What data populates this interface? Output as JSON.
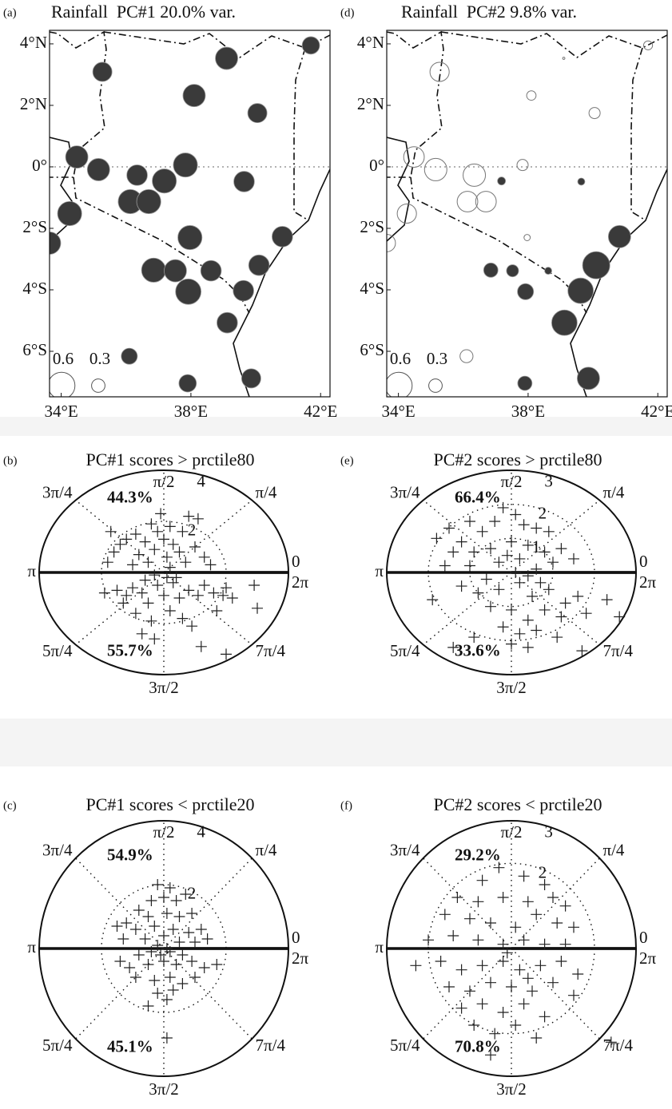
{
  "chart_data": [
    {
      "type": "bubble-map",
      "panel": "(a)",
      "title": "Rainfall  PC#1 20.0% var.",
      "x": [
        35.27,
        39.1,
        38.1,
        40.05,
        41.7,
        34.48,
        35.15,
        36.34,
        37.83,
        37.18,
        36.13,
        36.7,
        39.64,
        34.26,
        33.64,
        37.97,
        40.82,
        36.85,
        37.52,
        38.62,
        40.1,
        37.92,
        39.62,
        39.12,
        36.1,
        39.86,
        37.9
      ],
      "y": [
        3.09,
        3.53,
        2.32,
        1.75,
        3.95,
        0.32,
        -0.09,
        -0.27,
        0.06,
        -0.46,
        -1.13,
        -1.13,
        -0.48,
        -1.52,
        -2.48,
        -2.3,
        -2.27,
        -3.36,
        -3.38,
        -3.38,
        -3.2,
        -4.06,
        -4.03,
        -5.07,
        -6.16,
        -6.88,
        -7.04
      ],
      "values": [
        0.43,
        0.5,
        0.5,
        0.43,
        0.39,
        0.5,
        0.5,
        0.46,
        0.54,
        0.54,
        0.54,
        0.54,
        0.46,
        0.54,
        0.5,
        0.54,
        0.46,
        0.54,
        0.5,
        0.46,
        0.46,
        0.57,
        0.46,
        0.46,
        0.36,
        0.43,
        0.39
      ],
      "xlim": [
        33.64,
        42.29
      ],
      "ylim": [
        -7.48,
        4.44
      ],
      "xticks": [
        {
          "value": 34,
          "label": "34°E"
        },
        {
          "value": 38,
          "label": "38°E"
        },
        {
          "value": 42,
          "label": "42°E"
        }
      ],
      "yticks": [
        {
          "value": 4,
          "label": "4°N"
        },
        {
          "value": 2,
          "label": "2°N"
        },
        {
          "value": 0,
          "label": "0°"
        },
        {
          "value": -2,
          "label": "2°S"
        },
        {
          "value": -4,
          "label": "4°S"
        },
        {
          "value": -6,
          "label": "6°S"
        }
      ],
      "size_legend": [
        0.6,
        0.3
      ],
      "color": "#3a3a3a"
    },
    {
      "type": "polar-scatter",
      "panel": "(b)",
      "title": "PC#1 scores > prctile80",
      "x": [
        -1.7,
        -1.4,
        -1.6,
        -1.2,
        -0.9,
        -0.6,
        -0.4,
        -0.2,
        0,
        0.2,
        0.3,
        0.6,
        0.8,
        0.5,
        -0.8,
        -0.3,
        0.1,
        1.0,
        1.3,
        0.7,
        -1.0,
        -0.5,
        0.2,
        1.5,
        -1.8,
        1.1,
        -0.1,
        -1.9,
        -1.5,
        -1.2,
        -1.0,
        -0.7,
        -0.5,
        -0.2,
        0,
        0.3,
        0.5,
        0.8,
        1.1,
        1.3,
        1.6,
        1.9,
        2.0,
        2.9,
        3.0,
        2.2,
        -0.9,
        -0.4,
        -0.7,
        -0.3,
        0.2,
        0.6,
        0.9,
        1.2,
        2.0,
        -1.3,
        0.1,
        -0.3,
        0.4,
        -0.6,
        1.7
      ],
      "y": [
        1.6,
        1.1,
        0.8,
        1.3,
        1.5,
        1.2,
        1.9,
        1.6,
        1.3,
        1.8,
        1.1,
        1.6,
        2.2,
        0.8,
        0.7,
        0.9,
        0.6,
        1.0,
        0.6,
        0.4,
        0.3,
        0.4,
        0.2,
        0.3,
        0.4,
        2.1,
        2.3,
        -0.8,
        -0.7,
        -0.9,
        -0.6,
        -0.8,
        -1.2,
        -0.5,
        -0.9,
        -0.4,
        -1.0,
        -0.7,
        -0.9,
        -0.5,
        -0.8,
        -0.9,
        -0.6,
        -0.5,
        -1.4,
        -1.0,
        -1.6,
        -1.9,
        -2.4,
        -2.6,
        -1.5,
        -1.8,
        -2.1,
        -2.9,
        -3.2,
        -1.2,
        -0.2,
        -0.1,
        -0.2,
        -0.3,
        -1.5
      ],
      "rlim": [
        0,
        4
      ],
      "rticks": [
        2,
        4
      ],
      "thetaticks": [
        {
          "value": 0,
          "label": "0"
        },
        {
          "value": 0.7854,
          "label": "π/4"
        },
        {
          "value": 1.5708,
          "label": "π/2"
        },
        {
          "value": 2.3562,
          "label": "3π/4"
        },
        {
          "value": 3.1416,
          "label": "π"
        },
        {
          "value": 3.927,
          "label": "5π/4"
        },
        {
          "value": 4.7124,
          "label": "3π/2"
        },
        {
          "value": 5.4978,
          "label": "7π/4"
        },
        {
          "value": 6.2832,
          "label": "2π"
        }
      ],
      "annotations": [
        {
          "value": 44.3,
          "label": "44.3%"
        },
        {
          "value": 55.7,
          "label": "55.7%"
        }
      ],
      "color": "#222"
    },
    {
      "type": "polar-scatter",
      "panel": "(c)",
      "title": "PC#1 scores < prctile20",
      "x": [
        -0.2,
        0.2,
        0,
        -0.4,
        0.4,
        0.7,
        -0.8,
        -0.5,
        0.1,
        0.5,
        0.9,
        -1.2,
        -1.5,
        -0.9,
        -0.3,
        0.3,
        0.8,
        1.2,
        -1.3,
        -0.6,
        0,
        0.5,
        1.0,
        1.4,
        -0.2,
        0.2,
        -0.8,
        -1.4,
        -1.1,
        -0.5,
        0,
        0.4,
        0.9,
        1.3,
        1.7,
        -0.9,
        -0.3,
        0.2,
        0.6,
        1.0,
        -0.2,
        0.1,
        -0.5,
        0.3,
        0.1,
        -0.1,
        0.1,
        -0.4,
        0.6
      ],
      "y": [
        2.0,
        1.9,
        1.6,
        1.5,
        1.5,
        1.7,
        1.2,
        1.0,
        1.1,
        1.0,
        1.1,
        0.8,
        0.7,
        0.6,
        0.7,
        0.6,
        0.5,
        0.6,
        0.3,
        0.3,
        0.4,
        0.2,
        0.2,
        0.3,
        0.1,
        -0.1,
        -0.2,
        -0.4,
        -0.6,
        -0.5,
        -0.4,
        -0.5,
        -0.4,
        -0.6,
        -0.5,
        -0.9,
        -1.0,
        -0.9,
        -1.1,
        -0.9,
        -1.4,
        -1.6,
        -1.8,
        -1.3,
        -2.8,
        -0.2,
        0.0,
        -0.1,
        -0.2
      ],
      "rlim": [
        0,
        4
      ],
      "rticks": [
        2,
        4
      ],
      "thetaticks": [
        {
          "value": 0,
          "label": "0"
        },
        {
          "value": 0.7854,
          "label": "π/4"
        },
        {
          "value": 1.5708,
          "label": "π/2"
        },
        {
          "value": 2.3562,
          "label": "3π/4"
        },
        {
          "value": 3.1416,
          "label": "π"
        },
        {
          "value": 3.927,
          "label": "5π/4"
        },
        {
          "value": 4.7124,
          "label": "3π/2"
        },
        {
          "value": 5.4978,
          "label": "7π/4"
        },
        {
          "value": 6.2832,
          "label": "2π"
        }
      ],
      "annotations": [
        {
          "value": 54.9,
          "label": "54.9%"
        },
        {
          "value": 45.1,
          "label": "45.1%"
        }
      ],
      "color": "#222"
    },
    {
      "type": "bubble-map",
      "panel": "(d)",
      "title": "Rainfall  PC#2 9.8% var.",
      "x": [
        35.27,
        39.1,
        38.1,
        40.05,
        41.7,
        34.48,
        35.15,
        36.34,
        37.83,
        37.18,
        36.13,
        36.7,
        39.64,
        34.26,
        33.64,
        37.97,
        40.82,
        36.85,
        37.52,
        38.62,
        40.1,
        37.92,
        39.62,
        39.12,
        36.1,
        39.86,
        37.9
      ],
      "y": [
        3.09,
        3.53,
        2.32,
        1.75,
        3.95,
        0.32,
        -0.09,
        -0.27,
        0.06,
        -0.46,
        -1.13,
        -1.13,
        -0.48,
        -1.52,
        -2.48,
        -2.3,
        -2.27,
        -3.36,
        -3.38,
        -3.38,
        -3.2,
        -4.06,
        -4.03,
        -5.07,
        -6.16,
        -6.88,
        -7.04
      ],
      "values": [
        -0.43,
        -0.05,
        -0.21,
        -0.25,
        -0.2,
        -0.46,
        -0.5,
        -0.5,
        -0.25,
        0.18,
        -0.46,
        -0.46,
        0.16,
        -0.43,
        -0.39,
        -0.14,
        0.5,
        0.32,
        0.27,
        0.16,
        0.61,
        0.36,
        0.57,
        0.57,
        -0.29,
        0.5,
        0.32
      ],
      "xlim": [
        33.64,
        42.29
      ],
      "ylim": [
        -7.48,
        4.44
      ],
      "xticks": [
        {
          "value": 34,
          "label": "34°E"
        },
        {
          "value": 38,
          "label": "38°E"
        },
        {
          "value": 42,
          "label": "42°E"
        }
      ],
      "yticks": [
        {
          "value": 4,
          "label": "4°N"
        },
        {
          "value": 2,
          "label": "2°N"
        },
        {
          "value": 0,
          "label": "0°"
        },
        {
          "value": -2,
          "label": "2°S"
        },
        {
          "value": -4,
          "label": "4°S"
        },
        {
          "value": -6,
          "label": "6°S"
        }
      ],
      "size_legend": [
        0.6,
        0.3
      ],
      "color": "#3a3a3a"
    },
    {
      "type": "polar-scatter",
      "panel": "(e)",
      "title": "PC#2 scores > prctile80",
      "x": [
        -1.8,
        -1.5,
        -1.2,
        -1.0,
        -0.7,
        -0.4,
        -0.2,
        0.1,
        0.3,
        0.6,
        0.9,
        -1.4,
        -0.9,
        -0.5,
        0,
        0.4,
        0.8,
        1.2,
        1.5,
        -1.6,
        -1.0,
        -0.3,
        0.2,
        0.6,
        1.0,
        0.1,
        -0.6,
        -1.9,
        -1.2,
        -0.8,
        -0.3,
        0.2,
        0.5,
        0.9,
        1.3,
        1.6,
        -0.5,
        0,
        0.4,
        0.8,
        1.2,
        -0.2,
        0.2,
        0.6,
        1.1,
        -0.9,
        -1.4,
        0,
        0.4,
        1.7,
        2.6,
        1.8,
        2.3,
        0.4,
        0.7,
        -0.1
      ],
      "y": [
        1.0,
        1.3,
        0.9,
        1.5,
        1.2,
        1.5,
        1.9,
        1.7,
        1.4,
        1.3,
        1.2,
        0.6,
        0.6,
        0.7,
        0.9,
        0.8,
        0.6,
        0.7,
        0.4,
        0.2,
        0.2,
        0.3,
        0.4,
        0.1,
        0.3,
        0.0,
        -0.2,
        -0.8,
        -0.4,
        -0.6,
        -0.5,
        -0.3,
        -0.7,
        -0.5,
        -0.9,
        -0.7,
        -1.0,
        -1.1,
        -1.4,
        -1.1,
        -1.3,
        -1.6,
        -1.8,
        -1.7,
        -1.9,
        -1.9,
        -2.2,
        -2.1,
        -2.2,
        -2.3,
        -1.3,
        -1.2,
        -0.8,
        -0.1,
        -0.3,
        0.5
      ],
      "rlim": [
        0,
        3
      ],
      "rticks": [
        1,
        2,
        3
      ],
      "thetaticks": [
        {
          "value": 0,
          "label": "0"
        },
        {
          "value": 0.7854,
          "label": "π/4"
        },
        {
          "value": 1.5708,
          "label": "π/2"
        },
        {
          "value": 2.3562,
          "label": "3π/4"
        },
        {
          "value": 3.1416,
          "label": "π"
        },
        {
          "value": 3.927,
          "label": "5π/4"
        },
        {
          "value": 4.7124,
          "label": "3π/2"
        },
        {
          "value": 5.4978,
          "label": "7π/4"
        },
        {
          "value": 6.2832,
          "label": "2π"
        }
      ],
      "annotations": [
        {
          "value": 66.4,
          "label": "66.4%"
        },
        {
          "value": 33.6,
          "label": "33.6%"
        }
      ],
      "color": "#222"
    },
    {
      "type": "polar-scatter",
      "panel": "(f)",
      "title": "PC#2 scores < prctile20",
      "x": [
        -0.3,
        0.3,
        -0.7,
        0.8,
        -1.3,
        -0.8,
        -0.2,
        0.4,
        1.0,
        1.3,
        -1.6,
        -1.0,
        -0.5,
        0.1,
        0.6,
        1.1,
        1.5,
        -2.0,
        -1.4,
        -0.8,
        -0.2,
        0.3,
        0.8,
        1.3,
        -2.3,
        -1.7,
        -1.2,
        -0.7,
        -0.2,
        0.2,
        0.7,
        1.2,
        1.6,
        -1.5,
        -1.0,
        -0.5,
        0,
        0.5,
        1.0,
        1.5,
        -1.2,
        -0.7,
        -0.2,
        0.3,
        0.8,
        -0.9,
        -0.4,
        0.1,
        0.6,
        -0.5,
        2.4,
        -0.1,
        0.4
      ],
      "y": [
        1.9,
        1.7,
        1.6,
        1.5,
        1.2,
        1.1,
        1.2,
        1.1,
        1.2,
        1.0,
        0.8,
        0.7,
        0.6,
        0.5,
        0.8,
        0.6,
        0.5,
        0.2,
        0.3,
        0.2,
        0.1,
        0.2,
        0.1,
        0.1,
        -0.4,
        -0.3,
        -0.5,
        -0.4,
        -0.3,
        -0.5,
        -0.4,
        -0.3,
        -0.6,
        -0.9,
        -1.0,
        -0.8,
        -0.9,
        -1.0,
        -0.8,
        -1.1,
        -1.4,
        -1.3,
        -1.5,
        -1.3,
        -1.6,
        -1.8,
        -2.0,
        -1.8,
        -2.1,
        -2.5,
        -2.2,
        -0.1,
        -0.7
      ],
      "rlim": [
        0,
        3
      ],
      "rticks": [
        2,
        3
      ],
      "thetaticks": [
        {
          "value": 0,
          "label": "0"
        },
        {
          "value": 0.7854,
          "label": "π/4"
        },
        {
          "value": 1.5708,
          "label": "π/2"
        },
        {
          "value": 2.3562,
          "label": "3π/4"
        },
        {
          "value": 3.1416,
          "label": "π"
        },
        {
          "value": 3.927,
          "label": "5π/4"
        },
        {
          "value": 4.7124,
          "label": "3π/2"
        },
        {
          "value": 5.4978,
          "label": "7π/4"
        },
        {
          "value": 6.2832,
          "label": "2π"
        }
      ],
      "annotations": [
        {
          "value": 29.2,
          "label": "29.2%"
        },
        {
          "value": 70.8,
          "label": "70.8%"
        }
      ],
      "color": "#222"
    }
  ]
}
